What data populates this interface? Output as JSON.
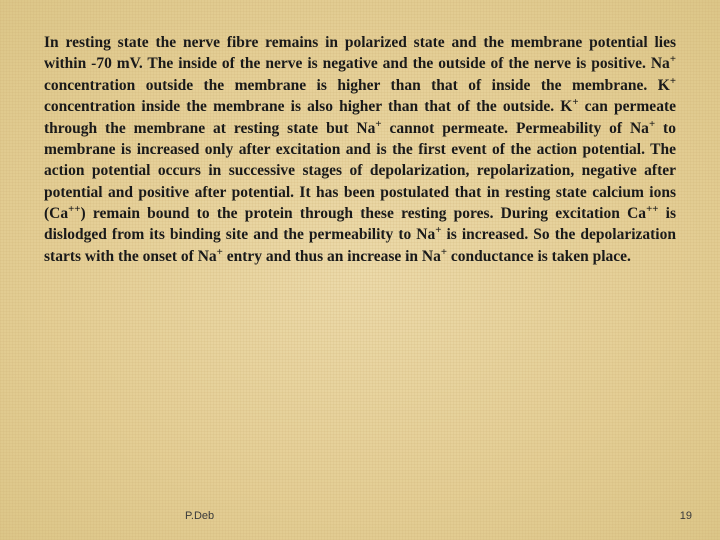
{
  "slide": {
    "background_base": "#e8d4a0",
    "text_color": "#1a1a1a",
    "font_family": "Georgia, 'Times New Roman', serif",
    "font_size_pt": 15.5,
    "font_weight": "bold",
    "line_height": 1.38,
    "text_align": "justify",
    "body_html": "In resting state the nerve fibre remains in polarized state and the membrane potential lies within -70 mV. The inside of the nerve is negative and the outside of the nerve is positive. Na<sup>+</sup> concentration outside the membrane is higher than that of inside the membrane. K<sup>+</sup> concentration inside the membrane is also higher than that of the outside. K<sup>+</sup> can permeate through the membrane at resting state but Na<sup>+</sup> cannot permeate. Permeability of Na<sup>+</sup> to membrane is increased only after excitation and is the first event of the action potential. The action potential occurs in successive stages of depolarization, repolarization, negative after potential and positive after potential. It has been postulated that in resting state calcium ions (Ca<sup>++</sup>) remain bound to the protein through these resting pores. During excitation Ca<sup>++</sup> is dislodged from its binding site and the permeability to Na<sup>+</sup> is increased. So the depolarization starts with the onset of Na<sup>+</sup> entry and thus an increase in Na<sup>+</sup> conductance is taken place."
  },
  "footer": {
    "author": "P.Deb",
    "page_number": "19",
    "font_size_pt": 11,
    "color": "#3a3a3a"
  }
}
